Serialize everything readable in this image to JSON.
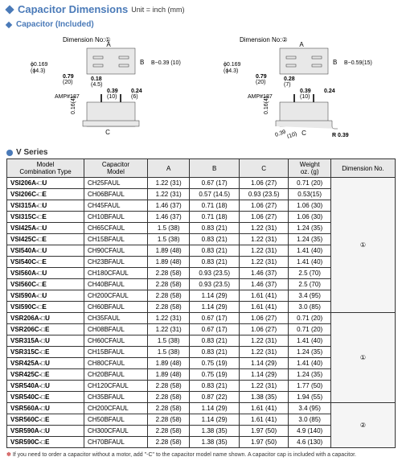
{
  "header": {
    "title": "Capacitor Dimensions",
    "unit": "Unit = inch (mm)"
  },
  "subheader": {
    "title": "Capacitor (Included)"
  },
  "dim_labels": {
    "no1": "Dimension No:①",
    "no2": "Dimension No:②",
    "a": "A",
    "b": "B",
    "c": "C"
  },
  "diag1": {
    "d1": "ϕ0.169",
    "d1mm": "(ϕ4.3)",
    "w1": "0.79",
    "w1mm": "(20)",
    "h1": "0.18",
    "h1mm": "(4.5)",
    "h2": "B−0.39 (10)",
    "amp": "AMP#187",
    "v1": "0.39",
    "v1mm": "(10)",
    "v2": "0.24",
    "v2mm": "(6)",
    "h3": "0.16(4)",
    "c": "C"
  },
  "diag2": {
    "d1": "ϕ0.169",
    "d1mm": "(ϕ4.3)",
    "w1": "0.79",
    "w1mm": "(20)",
    "h1": "0.28",
    "h1mm": "(7)",
    "h2": "B−0.59(15)",
    "amp": "AMP#187",
    "v1": "0.39",
    "v1mm": "(10)",
    "v2": "0.24",
    "h3": "0.16(4)",
    "h4": "0.39",
    "h4mm": "(10)",
    "r": "R 0.39",
    "c": "C"
  },
  "series": {
    "title": "V Series"
  },
  "columns": {
    "model": "Model\nCombination Type",
    "cap": "Capacitor\nModel",
    "a": "A",
    "b": "B",
    "c": "C",
    "weight": "Weight\noz. (g)",
    "dim": "Dimension No."
  },
  "rows": [
    {
      "model": "VSI206A-□U",
      "cap": "CH25FAUL",
      "a": "1.22 (31)",
      "b": "0.67 (17)",
      "c": "1.06 (27)",
      "w": "0.71 (20)",
      "dim": "1",
      "dimspan": 12
    },
    {
      "model": "VSI206C-□E",
      "cap": "CH06BFAUL",
      "a": "1.22 (31)",
      "b": "0.57 (14.5)",
      "c": "0.93 (23.5)",
      "w": "0.53(15)"
    },
    {
      "model": "VSI315A-□U",
      "cap": "CH45FAUL",
      "a": "1.46 (37)",
      "b": "0.71 (18)",
      "c": "1.06 (27)",
      "w": "1.06 (30)"
    },
    {
      "model": "VSI315C-□E",
      "cap": "CH10BFAUL",
      "a": "1.46 (37)",
      "b": "0.71 (18)",
      "c": "1.06 (27)",
      "w": "1.06 (30)"
    },
    {
      "model": "VSI425A-□U",
      "cap": "CH65CFAUL",
      "a": "1.5 (38)",
      "b": "0.83 (21)",
      "c": "1.22 (31)",
      "w": "1.24 (35)"
    },
    {
      "model": "VSI425C-□E",
      "cap": "CH15BFAUL",
      "a": "1.5 (38)",
      "b": "0.83 (21)",
      "c": "1.22 (31)",
      "w": "1.24 (35)"
    },
    {
      "model": "VSI540A-□U",
      "cap": "CH90CFAUL",
      "a": "1.89 (48)",
      "b": "0.83 (21)",
      "c": "1.22 (31)",
      "w": "1.41 (40)"
    },
    {
      "model": "VSI540C-□E",
      "cap": "CH23BFAUL",
      "a": "1.89 (48)",
      "b": "0.83 (21)",
      "c": "1.22 (31)",
      "w": "1.41 (40)"
    },
    {
      "model": "VSI560A-□U",
      "cap": "CH180CFAUL",
      "a": "2.28 (58)",
      "b": "0.93 (23.5)",
      "c": "1.46 (37)",
      "w": "2.5 (70)"
    },
    {
      "model": "VSI560C-□E",
      "cap": "CH40BFAUL",
      "a": "2.28 (58)",
      "b": "0.93 (23.5)",
      "c": "1.46 (37)",
      "w": "2.5 (70)"
    },
    {
      "model": "VSI590A-□U",
      "cap": "CH200CFAUL",
      "a": "2.28 (58)",
      "b": "1.14 (29)",
      "c": "1.61 (41)",
      "w": "3.4 (95)"
    },
    {
      "model": "VSI590C-□E",
      "cap": "CH60BFAUL",
      "a": "2.28 (58)",
      "b": "1.14 (29)",
      "c": "1.61 (41)",
      "w": "3.0 (85)"
    },
    {
      "model": "VSR206A-□U",
      "cap": "CH35FAUL",
      "a": "1.22 (31)",
      "b": "0.67 (17)",
      "c": "1.06 (27)",
      "w": "0.71 (20)",
      "dim": "1",
      "dimspan": 8
    },
    {
      "model": "VSR206C-□E",
      "cap": "CH08BFAUL",
      "a": "1.22 (31)",
      "b": "0.67 (17)",
      "c": "1.06 (27)",
      "w": "0.71 (20)"
    },
    {
      "model": "VSR315A-□U",
      "cap": "CH60CFAUL",
      "a": "1.5 (38)",
      "b": "0.83 (21)",
      "c": "1.22 (31)",
      "w": "1.41 (40)"
    },
    {
      "model": "VSR315C-□E",
      "cap": "CH15BFAUL",
      "a": "1.5 (38)",
      "b": "0.83 (21)",
      "c": "1.22 (31)",
      "w": "1.24 (35)"
    },
    {
      "model": "VSR425A-□U",
      "cap": "CH80CFAUL",
      "a": "1.89 (48)",
      "b": "0.75 (19)",
      "c": "1.14 (29)",
      "w": "1.41 (40)"
    },
    {
      "model": "VSR425C-□E",
      "cap": "CH20BFAUL",
      "a": "1.89 (48)",
      "b": "0.75 (19)",
      "c": "1.14 (29)",
      "w": "1.24 (35)"
    },
    {
      "model": "VSR540A-□U",
      "cap": "CH120CFAUL",
      "a": "2.28 (58)",
      "b": "0.83 (21)",
      "c": "1.22 (31)",
      "w": "1.77 (50)"
    },
    {
      "model": "VSR540C-□E",
      "cap": "CH35BFAUL",
      "a": "2.28 (58)",
      "b": "0.87 (22)",
      "c": "1.38 (35)",
      "w": "1.94 (55)"
    },
    {
      "model": "VSR560A-□U",
      "cap": "CH200CFAUL",
      "a": "2.28 (58)",
      "b": "1.14 (29)",
      "c": "1.61 (41)",
      "w": "3.4 (95)",
      "dim": "2",
      "dimspan": 4
    },
    {
      "model": "VSR560C-□E",
      "cap": "CH50BFAUL",
      "a": "2.28 (58)",
      "b": "1.14 (29)",
      "c": "1.61 (41)",
      "w": "3.0 (85)"
    },
    {
      "model": "VSR590A-□U",
      "cap": "CH300CFAUL",
      "a": "2.28 (58)",
      "b": "1.38 (35)",
      "c": "1.97 (50)",
      "w": "4.9 (140)"
    },
    {
      "model": "VSR590C-□E",
      "cap": "CH70BFAUL",
      "a": "2.28 (58)",
      "b": "1.38 (35)",
      "c": "1.97 (50)",
      "w": "4.6 (130)"
    }
  ],
  "footnote": "If you need to order a capacitor without a motor, add \"-C\" to the capacitor model name shown. A capacitor cap is included with a capacitor."
}
